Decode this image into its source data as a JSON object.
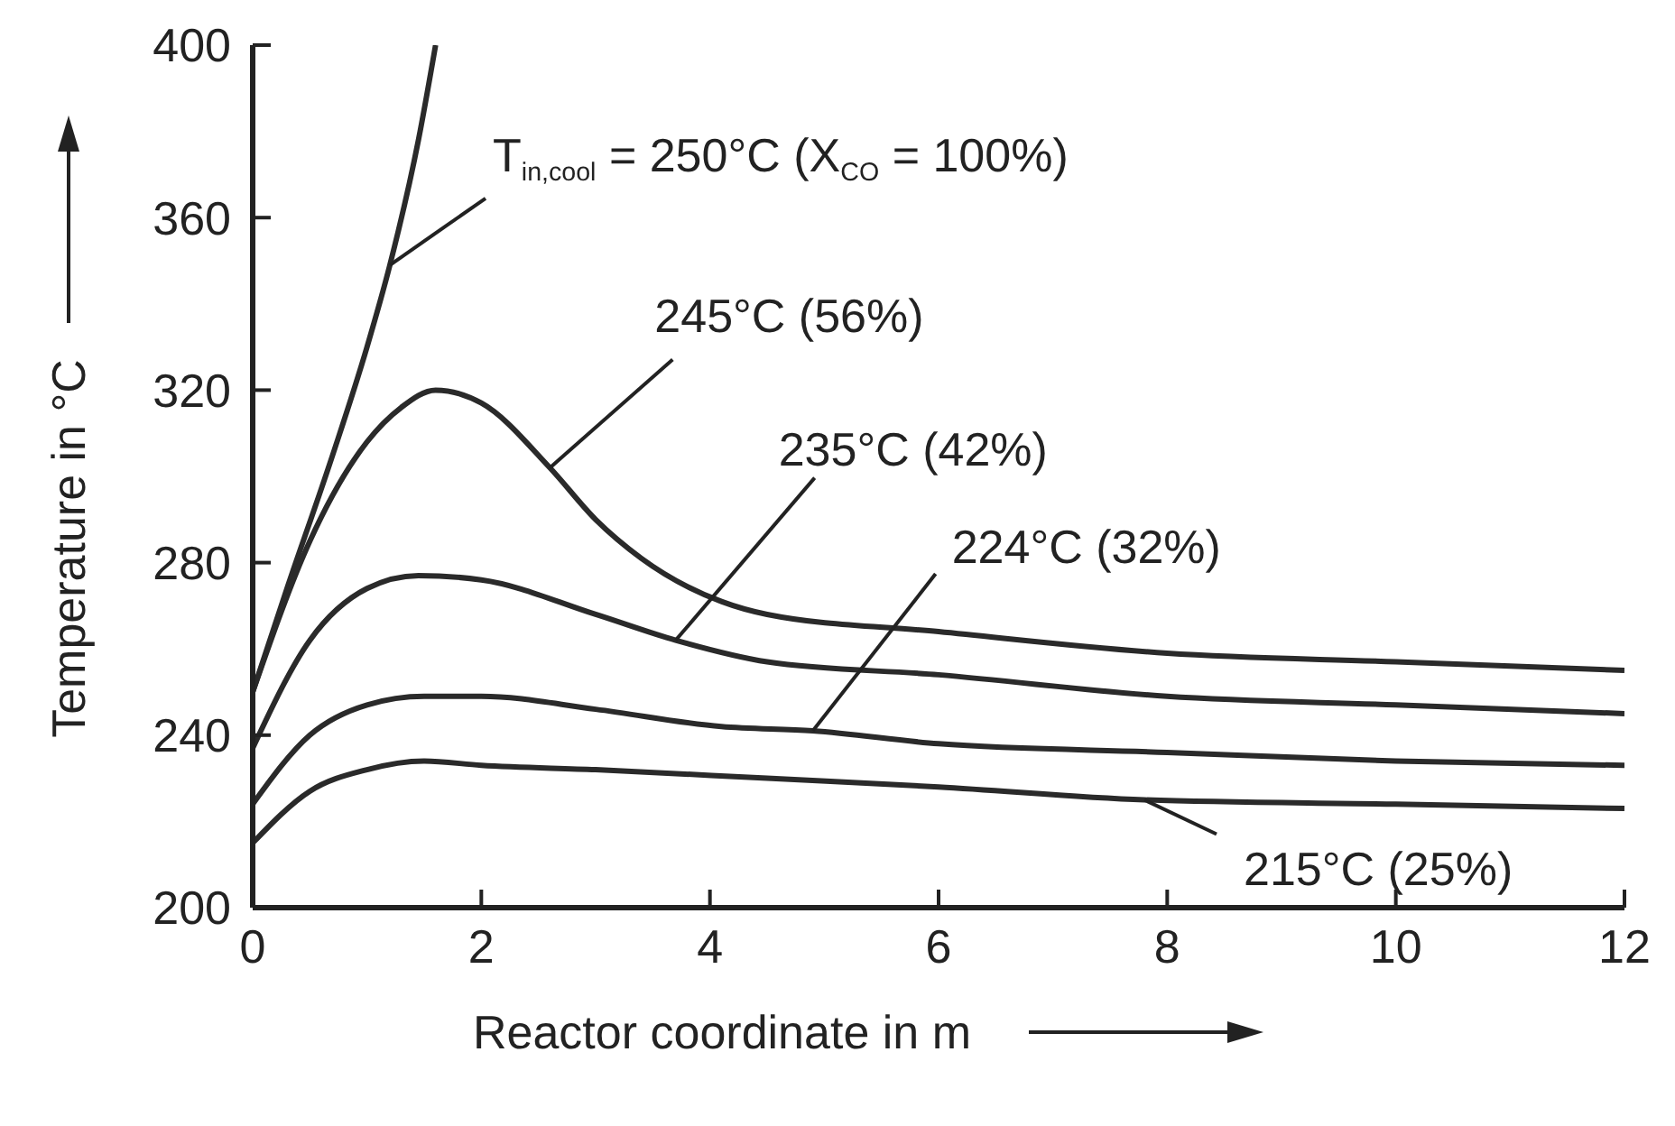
{
  "chart_data": {
    "type": "line",
    "xlabel": "Reactor coordinate in m",
    "ylabel": "Temperature in °C",
    "xlim": [
      0,
      12
    ],
    "xticks": [
      0,
      2,
      4,
      6,
      8,
      10,
      12
    ],
    "ylim": [
      200,
      400
    ],
    "yticks": [
      200,
      240,
      280,
      320,
      360,
      400
    ],
    "grid": false,
    "legend": false,
    "marker": "none",
    "line_style": "solid",
    "series": [
      {
        "color": "#2a2a2a",
        "x": [
          0,
          0.3,
          0.7,
          1.0,
          1.2,
          1.45,
          1.6
        ],
        "values": [
          250,
          274,
          305,
          330,
          349,
          378,
          400
        ]
      },
      {
        "color": "#2a2a2a",
        "x": [
          0,
          0.5,
          1,
          1.3,
          1.6,
          2,
          2.6,
          3,
          3.4,
          4.1,
          4.5,
          6,
          8,
          10,
          12
        ],
        "values": [
          250,
          285,
          308,
          316,
          320,
          317,
          302,
          290,
          281,
          271,
          268,
          264,
          259,
          257,
          255
        ]
      },
      {
        "color": "#2a2a2a",
        "x": [
          0,
          0.5,
          1,
          1.45,
          2,
          3,
          3.7,
          4.5,
          6,
          8,
          10,
          12
        ],
        "values": [
          237,
          262,
          274,
          277,
          276,
          268,
          262,
          257,
          254,
          249,
          247,
          245
        ]
      },
      {
        "color": "#2a2a2a",
        "x": [
          0,
          0.5,
          1,
          1.5,
          2,
          3,
          4.1,
          4.9,
          6,
          8,
          10,
          12
        ],
        "values": [
          224,
          240,
          247,
          249,
          249,
          246,
          242,
          241,
          238,
          236,
          234,
          233
        ]
      },
      {
        "color": "#2a2a2a",
        "x": [
          0,
          0.5,
          1,
          1.5,
          2,
          3,
          4.5,
          6,
          7.8,
          10,
          12
        ],
        "values": [
          215,
          227,
          232,
          234,
          233,
          232,
          230,
          228,
          225,
          224,
          223
        ]
      }
    ],
    "annotations": [
      {
        "text": "T$_{in,cool}$ = 250°C (X$_{CO}$ = 100%)",
        "x": 1.2,
        "y": 349
      },
      {
        "text": "245°C (56%)",
        "x": 2.6,
        "y": 302
      },
      {
        "text": "235°C (42%)",
        "x": 3.7,
        "y": 262
      },
      {
        "text": "224°C (32%)",
        "x": 4.9,
        "y": 241
      },
      {
        "text": "215°C (25%)",
        "x": 7.8,
        "y": 225
      }
    ]
  }
}
